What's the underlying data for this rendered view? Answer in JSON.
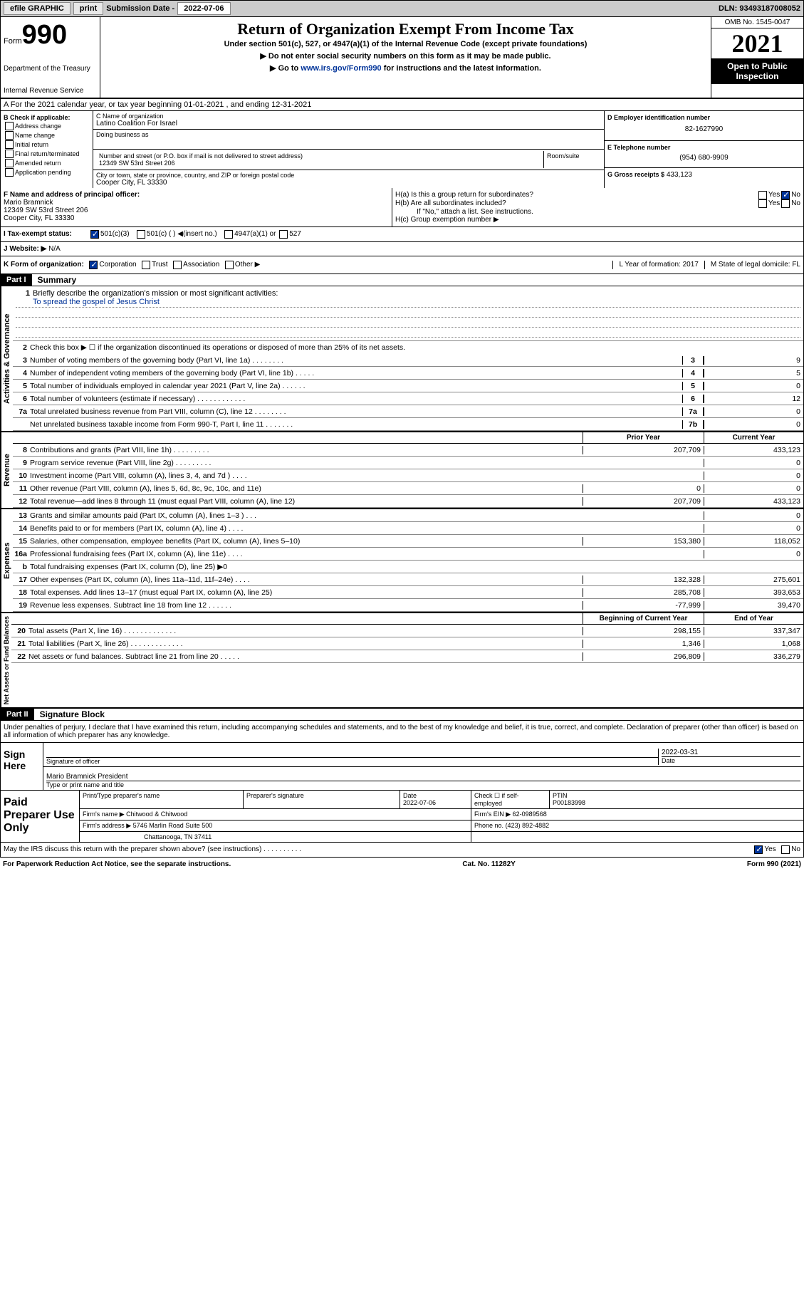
{
  "topbar": {
    "efile": "efile GRAPHIC",
    "print": "print",
    "subLabel": "Submission Date - ",
    "subDate": "2022-07-06",
    "dln": "DLN: 93493187008052"
  },
  "header": {
    "formLabel": "Form",
    "formNum": "990",
    "dept": "Department of the Treasury",
    "irs": "Internal Revenue Service",
    "title": "Return of Organization Exempt From Income Tax",
    "sub1": "Under section 501(c), 527, or 4947(a)(1) of the Internal Revenue Code (except private foundations)",
    "sub2a": "▶ Do not enter social security numbers on this form as it may be made public.",
    "sub2b": "▶ Go to ",
    "sub2link": "www.irs.gov/Form990",
    "sub2c": " for instructions and the latest information.",
    "omb": "OMB No. 1545-0047",
    "year": "2021",
    "openPub": "Open to Public Inspection"
  },
  "rowA": "A For the 2021 calendar year, or tax year beginning 01-01-2021    , and ending 12-31-2021",
  "colB": {
    "hdr": "B Check if applicable:",
    "items": [
      "Address change",
      "Name change",
      "Initial return",
      "Final return/terminated",
      "Amended return",
      "Application pending"
    ]
  },
  "colC": {
    "nameLabel": "C Name of organization",
    "name": "Latino Coalition For Israel",
    "dbaLabel": "Doing business as",
    "addrLabel": "Number and street (or P.O. box if mail is not delivered to street address)",
    "roomLabel": "Room/suite",
    "addr": "12349 SW 53rd Street 206",
    "cityLabel": "City or town, state or province, country, and ZIP or foreign postal code",
    "city": "Cooper City, FL  33330"
  },
  "colD": {
    "einLabel": "D Employer identification number",
    "ein": "82-1627990",
    "telLabel": "E Telephone number",
    "tel": "(954) 680-9909",
    "grossLabel": "G Gross receipts $",
    "gross": "433,123"
  },
  "rowF": {
    "label": "F  Name and address of principal officer:",
    "name": "Mario Bramnick",
    "addr1": "12349 SW 53rd Street 206",
    "addr2": "Cooper City, FL  33330",
    "ha": "H(a)  Is this a group return for subordinates?",
    "hb": "H(b)  Are all subordinates included?",
    "hbNote": "If \"No,\" attach a list. See instructions.",
    "hc": "H(c)  Group exemption number ▶",
    "yes": "Yes",
    "no": "No"
  },
  "rowI": {
    "label": "I    Tax-exempt status:",
    "opt1": "501(c)(3)",
    "opt2": "501(c) (  ) ◀(insert no.)",
    "opt3": "4947(a)(1) or",
    "opt4": "527"
  },
  "rowJ": {
    "label": "J    Website: ▶",
    "val": "N/A"
  },
  "rowK": {
    "label": "K Form of organization:",
    "opts": [
      "Corporation",
      "Trust",
      "Association",
      "Other ▶"
    ],
    "l": "L Year of formation: 2017",
    "m": "M State of legal domicile: FL"
  },
  "part1": {
    "hdr": "Part I",
    "title": "Summary"
  },
  "summary": {
    "q1": "Briefly describe the organization's mission or most significant activities:",
    "mission": "To spread the gospel of Jesus Christ",
    "q2": "Check this box ▶ ☐  if the organization discontinued its operations or disposed of more than 25% of its net assets.",
    "lines": [
      {
        "n": "3",
        "t": "Number of voting members of the governing body (Part VI, line 1a)   .    .    .    .    .    .    .    .",
        "nc": "3",
        "v": "9"
      },
      {
        "n": "4",
        "t": "Number of independent voting members of the governing body (Part VI, line 1b)    .    .    .    .    .",
        "nc": "4",
        "v": "5"
      },
      {
        "n": "5",
        "t": "Total number of individuals employed in calendar year 2021 (Part V, line 2a)    .    .    .    .    .    .",
        "nc": "5",
        "v": "0"
      },
      {
        "n": "6",
        "t": "Total number of volunteers (estimate if necessary)    .    .    .    .    .    .    .    .    .    .    .    .",
        "nc": "6",
        "v": "12"
      },
      {
        "n": "7a",
        "t": "Total unrelated business revenue from Part VIII, column (C), line 12    .    .    .    .    .    .    .    .",
        "nc": "7a",
        "v": "0"
      },
      {
        "n": "",
        "t": "Net unrelated business taxable income from Form 990-T, Part I, line 11    .    .    .    .    .    .    .",
        "nc": "7b",
        "v": "0"
      }
    ],
    "priorHdr": "Prior Year",
    "currHdr": "Current Year",
    "rev": [
      {
        "n": "8",
        "t": "Contributions and grants (Part VIII, line 1h)    .    .    .    .    .    .    .    .    .",
        "p": "207,709",
        "c": "433,123"
      },
      {
        "n": "9",
        "t": "Program service revenue (Part VIII, line 2g)    .    .    .    .    .    .    .    .    .",
        "p": "",
        "c": "0"
      },
      {
        "n": "10",
        "t": "Investment income (Part VIII, column (A), lines 3, 4, and 7d )    .    .    .    .",
        "p": "",
        "c": "0"
      },
      {
        "n": "11",
        "t": "Other revenue (Part VIII, column (A), lines 5, 6d, 8c, 9c, 10c, and 11e)",
        "p": "0",
        "c": "0"
      },
      {
        "n": "12",
        "t": "Total revenue—add lines 8 through 11 (must equal Part VIII, column (A), line 12)",
        "p": "207,709",
        "c": "433,123"
      }
    ],
    "exp": [
      {
        "n": "13",
        "t": "Grants and similar amounts paid (Part IX, column (A), lines 1–3 )    .    .    .",
        "p": "",
        "c": "0"
      },
      {
        "n": "14",
        "t": "Benefits paid to or for members (Part IX, column (A), line 4)    .    .    .    .",
        "p": "",
        "c": "0"
      },
      {
        "n": "15",
        "t": "Salaries, other compensation, employee benefits (Part IX, column (A), lines 5–10)",
        "p": "153,380",
        "c": "118,052"
      },
      {
        "n": "16a",
        "t": "Professional fundraising fees (Part IX, column (A), line 11e)    .    .    .    .",
        "p": "",
        "c": "0"
      },
      {
        "n": "b",
        "t": "Total fundraising expenses (Part IX, column (D), line 25) ▶0",
        "p": "shaded",
        "c": "shaded"
      },
      {
        "n": "17",
        "t": "Other expenses (Part IX, column (A), lines 11a–11d, 11f–24e)    .    .    .    .",
        "p": "132,328",
        "c": "275,601"
      },
      {
        "n": "18",
        "t": "Total expenses. Add lines 13–17 (must equal Part IX, column (A), line 25)",
        "p": "285,708",
        "c": "393,653"
      },
      {
        "n": "19",
        "t": "Revenue less expenses. Subtract line 18 from line 12    .    .    .    .    .    .",
        "p": "-77,999",
        "c": "39,470"
      }
    ],
    "beginHdr": "Beginning of Current Year",
    "endHdr": "End of Year",
    "net": [
      {
        "n": "20",
        "t": "Total assets (Part X, line 16)    .    .    .    .    .    .    .    .    .    .    .    .    .",
        "p": "298,155",
        "c": "337,347"
      },
      {
        "n": "21",
        "t": "Total liabilities (Part X, line 26)    .    .    .    .    .    .    .    .    .    .    .    .    .",
        "p": "1,346",
        "c": "1,068"
      },
      {
        "n": "22",
        "t": "Net assets or fund balances. Subtract line 21 from line 20    .    .    .    .    .",
        "p": "296,809",
        "c": "336,279"
      }
    ]
  },
  "vertLabels": {
    "gov": "Activities & Governance",
    "rev": "Revenue",
    "exp": "Expenses",
    "net": "Net Assets or Fund Balances"
  },
  "part2": {
    "hdr": "Part II",
    "title": "Signature Block"
  },
  "sig": {
    "decl": "Under penalties of perjury, I declare that I have examined this return, including accompanying schedules and statements, and to the best of my knowledge and belief, it is true, correct, and complete. Declaration of preparer (other than officer) is based on all information of which preparer has any knowledge.",
    "signHere": "Sign Here",
    "sigOfficer": "Signature of officer",
    "date": "2022-03-31",
    "dateLabel": "Date",
    "officer": "Mario Bramnick  President",
    "typeLabel": "Type or print name and title",
    "paidPrep": "Paid Preparer Use Only",
    "prepName": "Print/Type preparer's name",
    "prepSig": "Preparer's signature",
    "prepDate": "Date",
    "prepDateVal": "2022-07-06",
    "checkIf": "Check ☐ if self-employed",
    "ptin": "PTIN",
    "ptinVal": "P00183998",
    "firmName": "Firm's name     ▶",
    "firmNameVal": "Chitwood & Chitwood",
    "firmEin": "Firm's EIN ▶",
    "firmEinVal": "62-0989568",
    "firmAddr": "Firm's address ▶",
    "firmAddrVal": "5746 Marlin Road Suite 500",
    "firmCity": "Chattanooga, TN  37411",
    "phone": "Phone no.",
    "phoneVal": "(423) 892-4882",
    "discuss": "May the IRS discuss this return with the preparer shown above? (see instructions)    .    .    .    .    .    .    .    .    .    .",
    "paperwork": "For Paperwork Reduction Act Notice, see the separate instructions.",
    "cat": "Cat. No. 11282Y",
    "formFoot": "Form 990 (2021)"
  }
}
